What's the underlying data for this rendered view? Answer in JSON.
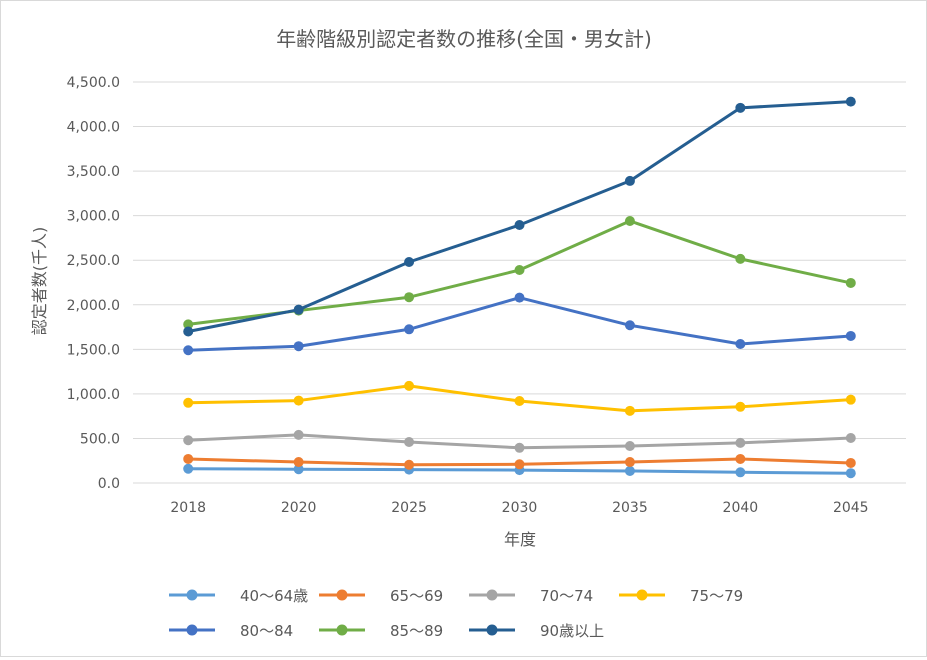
{
  "chart_data": {
    "type": "line",
    "title": "年齢階級別認定者数の推移(全国・男女計)",
    "xlabel": "年度",
    "ylabel": "認定者数(千人)",
    "categories": [
      "2018",
      "2020",
      "2025",
      "2030",
      "2035",
      "2040",
      "2045"
    ],
    "ylim": [
      0,
      4500
    ],
    "yticks": [
      0,
      500,
      1000,
      1500,
      2000,
      2500,
      3000,
      3500,
      4000,
      4500
    ],
    "ytick_labels": [
      "0.0",
      "500.0",
      "1,000.0",
      "1,500.0",
      "2,000.0",
      "2,500.0",
      "3,000.0",
      "3,500.0",
      "4,000.0",
      "4,500.0"
    ],
    "grid": "horizontal",
    "legend_position": "bottom",
    "series": [
      {
        "name": "40〜64歳",
        "color": "#5b9bd5",
        "values": [
          160,
          155,
          150,
          145,
          135,
          120,
          110
        ]
      },
      {
        "name": "65〜69",
        "color": "#ed7d31",
        "values": [
          270,
          235,
          205,
          210,
          235,
          270,
          225
        ]
      },
      {
        "name": "70〜74",
        "color": "#a5a5a5",
        "values": [
          480,
          540,
          460,
          395,
          415,
          450,
          505
        ]
      },
      {
        "name": "75〜79",
        "color": "#ffc000",
        "values": [
          900,
          925,
          1090,
          920,
          810,
          855,
          935
        ]
      },
      {
        "name": "80〜84",
        "color": "#4472c4",
        "values": [
          1490,
          1535,
          1725,
          2080,
          1770,
          1560,
          1650
        ]
      },
      {
        "name": "85〜89",
        "color": "#70ad47",
        "values": [
          1780,
          1935,
          2085,
          2390,
          2940,
          2515,
          2245
        ]
      },
      {
        "name": "90歳以上",
        "color": "#255e91",
        "values": [
          1700,
          1945,
          2480,
          2895,
          3390,
          4210,
          4280
        ]
      }
    ]
  }
}
